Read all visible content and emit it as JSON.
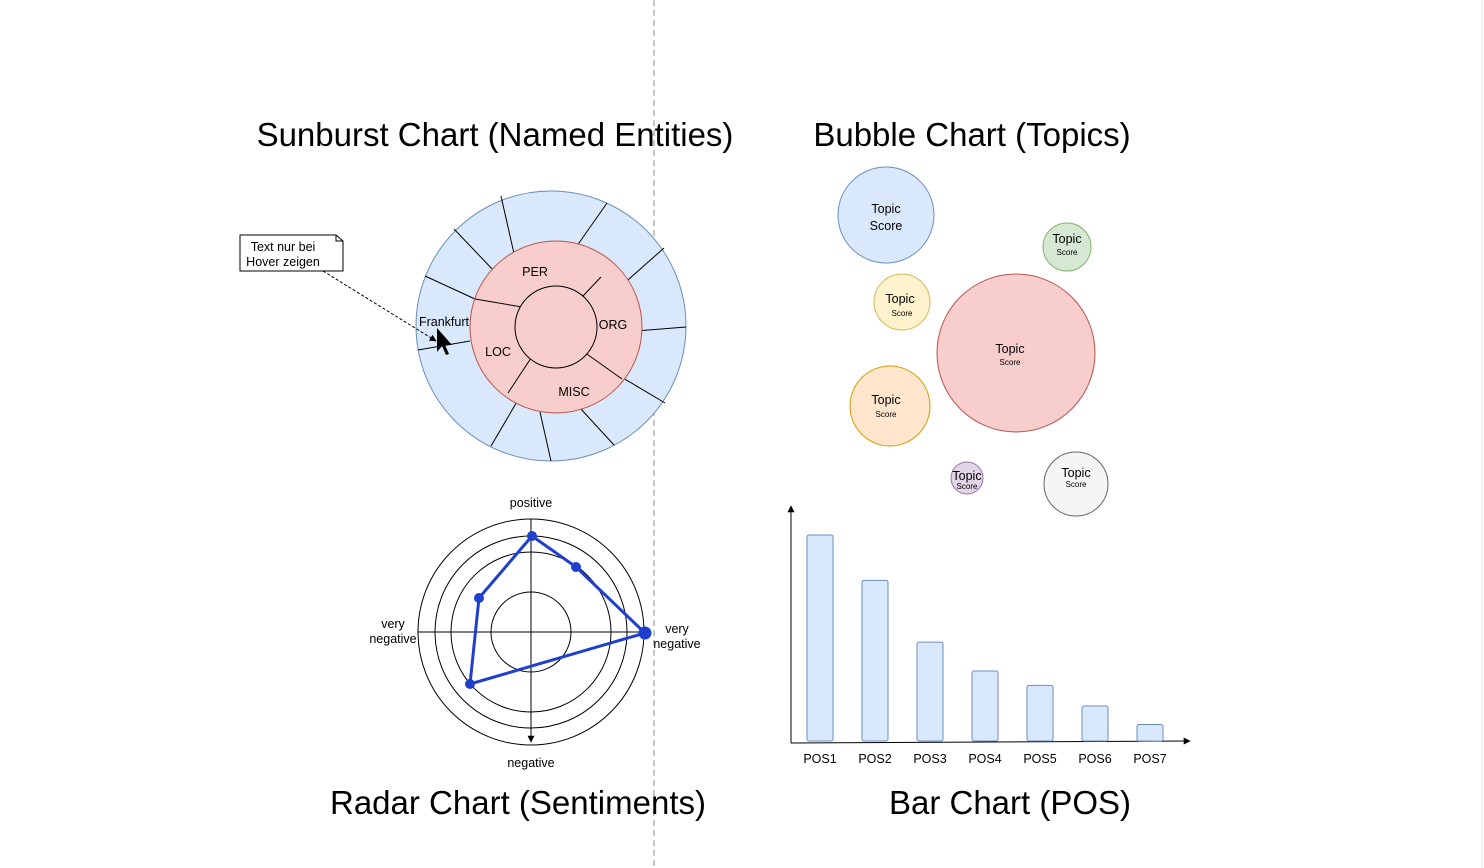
{
  "titles": {
    "sunburst": "Sunburst Chart (Named Entities)",
    "bubble": "Bubble Chart (Topics)",
    "radar": "Radar Chart (Sentiments)",
    "bar": "Bar Chart (POS)"
  },
  "sunburst": {
    "inner_labels": [
      "PER",
      "ORG",
      "MISC",
      "LOC"
    ],
    "hover_label": "Frankfurt",
    "note_line1": "Text nur bei",
    "note_line2": "Hover zeigen",
    "colors": {
      "outer_fill": "#dae8fc",
      "outer_stroke": "#6c8ebf",
      "inner_fill": "#f8cecc",
      "inner_stroke": "#b85450"
    }
  },
  "bubbles": [
    {
      "topic": "Topic",
      "score": "Score",
      "fill": "#dae8fc",
      "stroke": "#6c8ebf"
    },
    {
      "topic": "Topic",
      "score": "Score",
      "fill": "#d5e8d4",
      "stroke": "#82b366"
    },
    {
      "topic": "Topic",
      "score": "Score",
      "fill": "#fff2cc",
      "stroke": "#d6b656"
    },
    {
      "topic": "Topic",
      "score": "Score",
      "fill": "#f8cecc",
      "stroke": "#b85450"
    },
    {
      "topic": "Topic",
      "score": "Score",
      "fill": "#ffe6cc",
      "stroke": "#d79b00"
    },
    {
      "topic": "Topic",
      "score": "Score",
      "fill": "#e1d5e7",
      "stroke": "#9673a6"
    },
    {
      "topic": "Topic",
      "score": "Score",
      "fill": "#f5f5f5",
      "stroke": "#666666"
    }
  ],
  "radar": {
    "label_top": "positive",
    "label_bottom": "negative",
    "label_left_1": "very",
    "label_left_2": "negative",
    "label_right_1": "very",
    "label_right_2": "negative",
    "color": "#1f3fcc"
  },
  "chart_data": {
    "type": "bar",
    "categories": [
      "POS1",
      "POS2",
      "POS3",
      "POS4",
      "POS5",
      "POS6",
      "POS7"
    ],
    "values": [
      100,
      78,
      48,
      34,
      27,
      17,
      8
    ],
    "bar_fill": "#dae8fc",
    "bar_stroke": "#6c8ebf"
  }
}
